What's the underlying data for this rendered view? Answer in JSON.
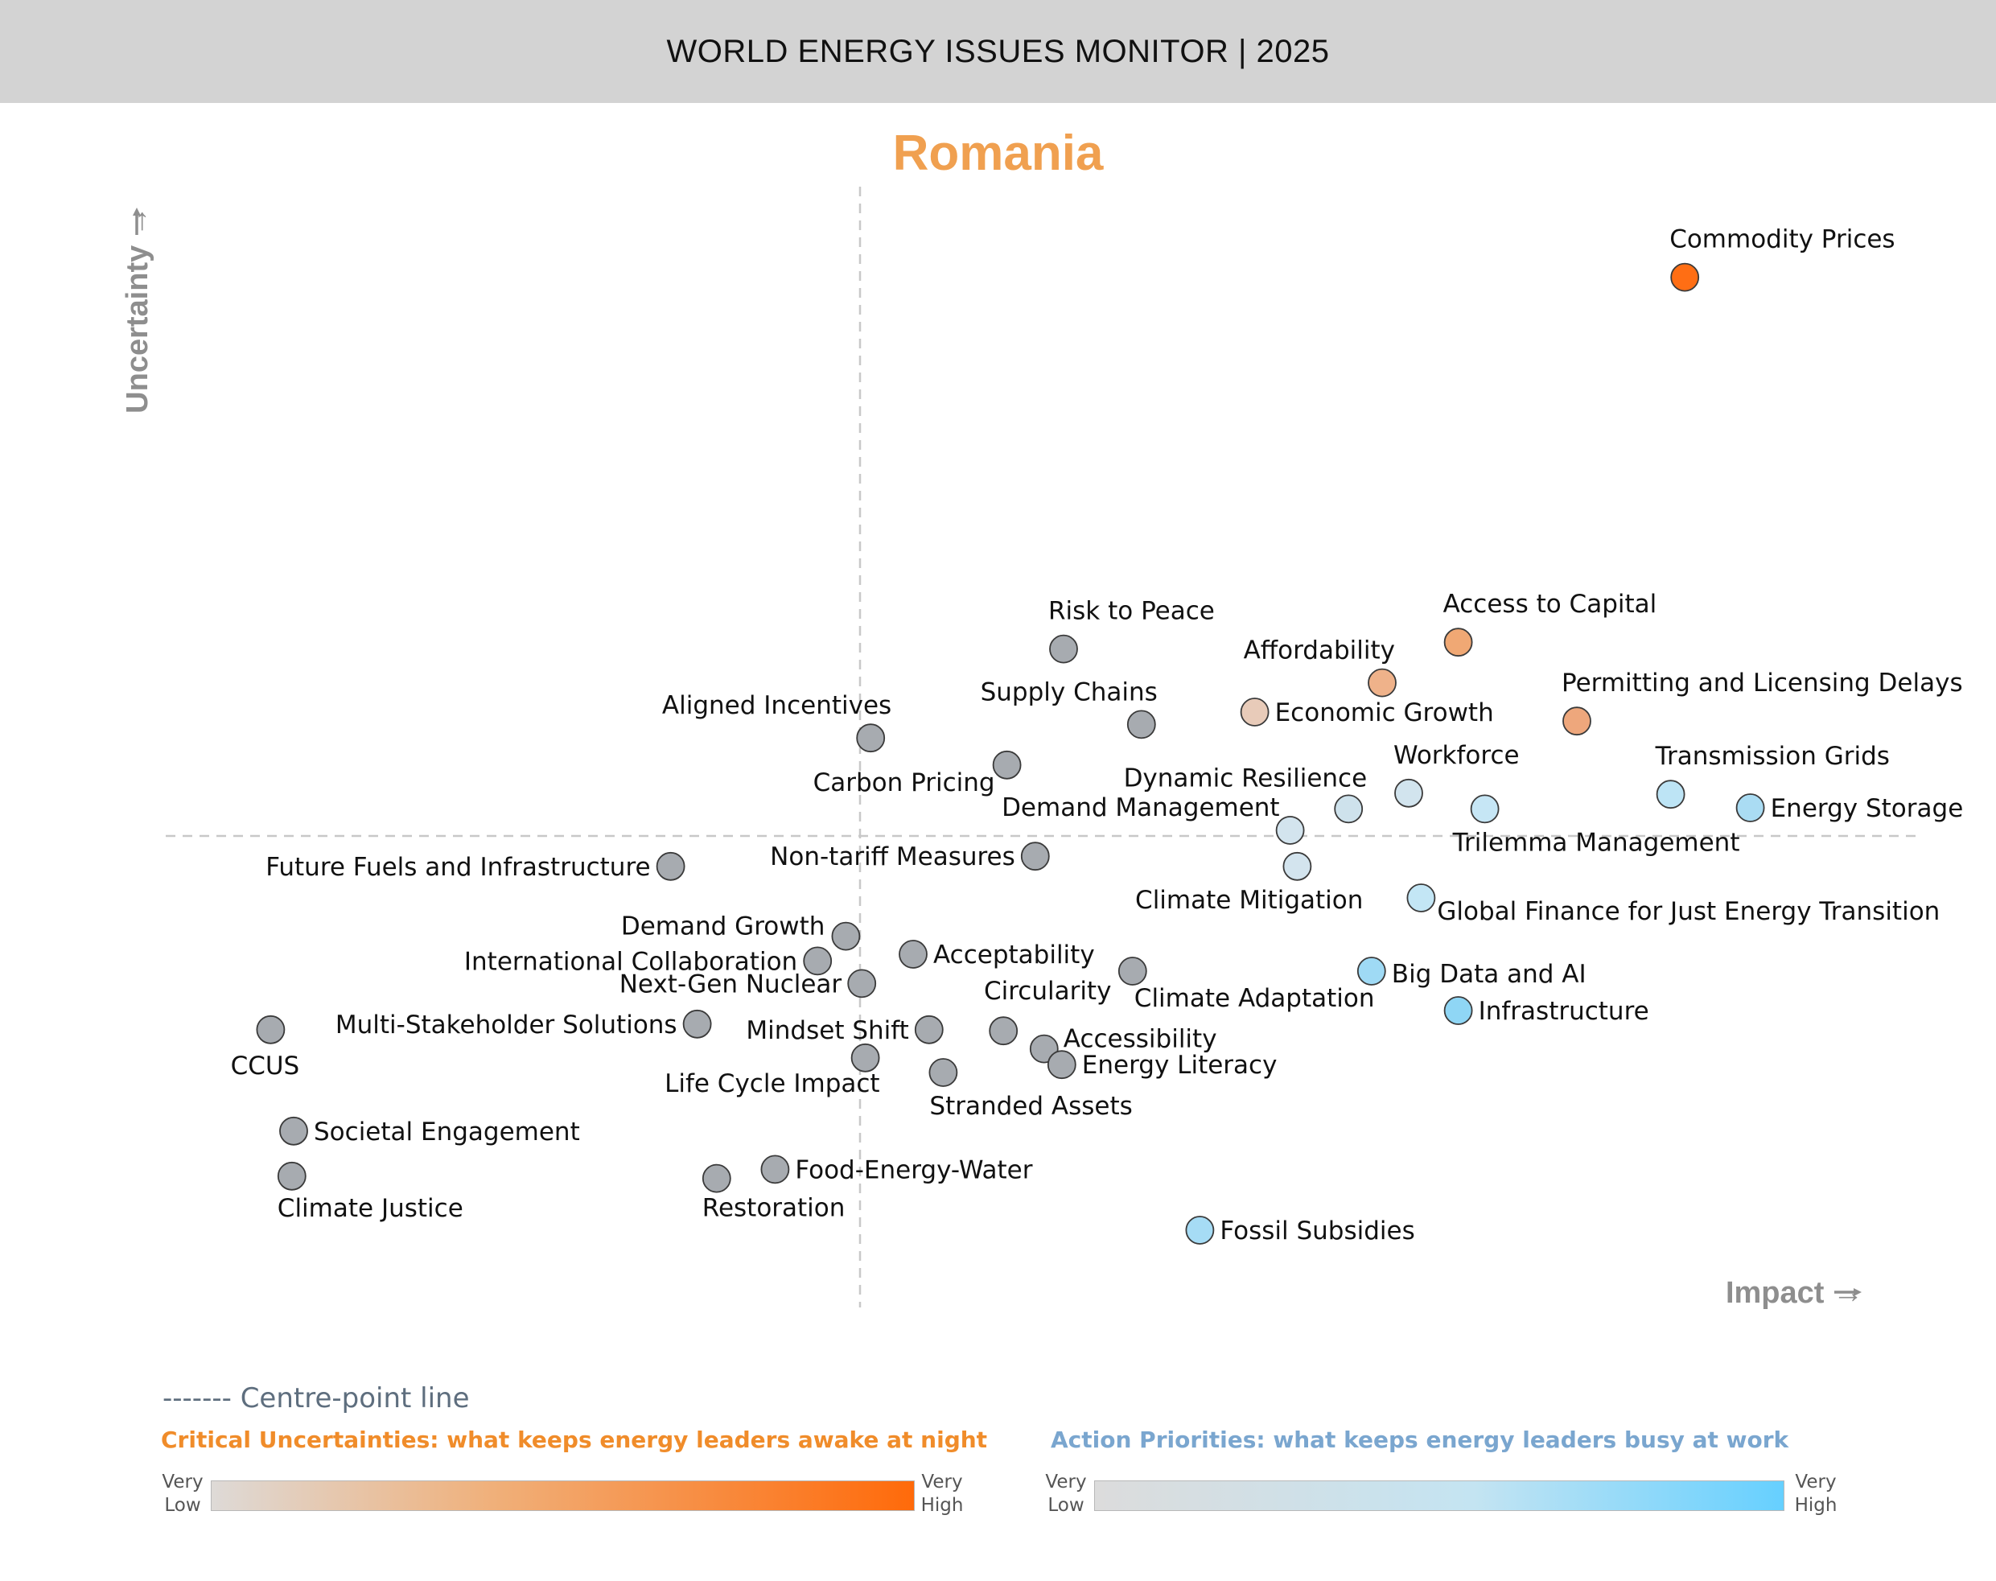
{
  "header": {
    "title": "WORLD ENERGY ISSUES MONITOR | 2025"
  },
  "country": "Romania",
  "chart_data": {
    "type": "scatter",
    "title": "Romania",
    "xlabel": "Impact →",
    "ylabel": "Uncertainty →",
    "xlim": [
      0,
      100
    ],
    "ylim": [
      0,
      100
    ],
    "centre_x": 39.5,
    "centre_y": 41.5,
    "grid": false,
    "points": [
      {
        "name": "Commodity Prices",
        "x": 86.1,
        "y": 91.1,
        "color": "#ff6e14",
        "label_pos": "above-left"
      },
      {
        "name": "Access to Capital",
        "x": 73.3,
        "y": 58.7,
        "color": "#f0a874",
        "label_pos": "above-left"
      },
      {
        "name": "Affordability",
        "x": 69.0,
        "y": 55.1,
        "color": "#efb28a",
        "label_pos": "above-left"
      },
      {
        "name": "Economic Growth",
        "x": 61.8,
        "y": 52.5,
        "color": "#e8cbb9",
        "label_pos": "right"
      },
      {
        "name": "Permitting and Licensing Delays",
        "x": 80.0,
        "y": 51.7,
        "color": "#eea77c",
        "label_pos": "above-left"
      },
      {
        "name": "Risk to Peace",
        "x": 51.0,
        "y": 58.1,
        "color": "#a7abb0",
        "label_pos": "above-left"
      },
      {
        "name": "Supply Chains",
        "x": 55.4,
        "y": 51.4,
        "color": "#a7abb0",
        "label_pos": "above-left"
      },
      {
        "name": "Aligned Incentives",
        "x": 40.1,
        "y": 50.2,
        "color": "#a7abb0",
        "label_pos": "above-left"
      },
      {
        "name": "Carbon Pricing",
        "x": 47.8,
        "y": 47.8,
        "color": "#a7abb0",
        "label_pos": "below-left"
      },
      {
        "name": "Workforce",
        "x": 70.5,
        "y": 45.3,
        "color": "#d2e4ee",
        "label_pos": "above-left"
      },
      {
        "name": "Dynamic Resilience",
        "x": 67.1,
        "y": 43.9,
        "color": "#cee2ec",
        "label_pos": "above-left"
      },
      {
        "name": "Demand Management",
        "x": 63.8,
        "y": 42.0,
        "color": "#d3e4ee",
        "label_pos": "above-left"
      },
      {
        "name": "Trilemma Management",
        "x": 74.8,
        "y": 43.9,
        "color": "#c6e6f5",
        "label_pos": "below-right"
      },
      {
        "name": "Transmission Grids",
        "x": 85.3,
        "y": 45.2,
        "color": "#bde4f5",
        "label_pos": "above-left"
      },
      {
        "name": "Energy Storage",
        "x": 89.8,
        "y": 44.0,
        "color": "#aadcf3",
        "label_pos": "right"
      },
      {
        "name": "Non-tariff Measures",
        "x": 49.4,
        "y": 39.7,
        "color": "#a7abb0",
        "label_pos": "left"
      },
      {
        "name": "Future Fuels and Infrastructure",
        "x": 28.8,
        "y": 38.8,
        "color": "#a7abb0",
        "label_pos": "left"
      },
      {
        "name": "Climate Mitigation",
        "x": 64.2,
        "y": 38.8,
        "color": "#d3e4ee",
        "label_pos": "below-left"
      },
      {
        "name": "Global Finance for Just Energy Transition",
        "x": 71.2,
        "y": 36.0,
        "color": "#c3e6f5",
        "label_pos": "below-right"
      },
      {
        "name": "Demand Growth",
        "x": 38.7,
        "y": 32.6,
        "color": "#a7abb0",
        "label_pos": "above-left"
      },
      {
        "name": "International Collaboration",
        "x": 37.1,
        "y": 30.4,
        "color": "#a7abb0",
        "label_pos": "left"
      },
      {
        "name": "Acceptability",
        "x": 42.5,
        "y": 31.0,
        "color": "#a7abb0",
        "label_pos": "right"
      },
      {
        "name": "Next-Gen Nuclear",
        "x": 39.6,
        "y": 28.4,
        "color": "#a7abb0",
        "label_pos": "left"
      },
      {
        "name": "Climate Adaptation",
        "x": 54.9,
        "y": 29.5,
        "color": "#a7abb0",
        "label_pos": "below-right"
      },
      {
        "name": "Big Data and AI",
        "x": 68.4,
        "y": 29.5,
        "color": "#9fdaf5",
        "label_pos": "right"
      },
      {
        "name": "Infrastructure",
        "x": 73.3,
        "y": 26.0,
        "color": "#8fd6f5",
        "label_pos": "right"
      },
      {
        "name": "Multi-Stakeholder Solutions",
        "x": 30.3,
        "y": 24.8,
        "color": "#a7abb0",
        "label_pos": "left"
      },
      {
        "name": "CCUS",
        "x": 6.2,
        "y": 24.3,
        "color": "#a7abb0",
        "label_pos": "below"
      },
      {
        "name": "Mindset Shift",
        "x": 43.4,
        "y": 24.3,
        "color": "#a7abb0",
        "label_pos": "left"
      },
      {
        "name": "Circularity",
        "x": 47.6,
        "y": 24.2,
        "color": "#a7abb0",
        "label_pos": "above"
      },
      {
        "name": "Accessibility",
        "x": 49.9,
        "y": 22.6,
        "color": "#a7abb0",
        "label_pos": "above-right"
      },
      {
        "name": "Life Cycle Impact",
        "x": 39.8,
        "y": 21.8,
        "color": "#a7abb0",
        "label_pos": "below-left"
      },
      {
        "name": "Energy Literacy",
        "x": 50.9,
        "y": 21.2,
        "color": "#a7abb0",
        "label_pos": "right"
      },
      {
        "name": "Stranded Assets",
        "x": 44.2,
        "y": 20.5,
        "color": "#a7abb0",
        "label_pos": "below-right"
      },
      {
        "name": "Societal Engagement",
        "x": 7.5,
        "y": 15.3,
        "color": "#a7abb0",
        "label_pos": "right"
      },
      {
        "name": "Food-Energy-Water",
        "x": 34.7,
        "y": 11.9,
        "color": "#a7abb0",
        "label_pos": "right"
      },
      {
        "name": "Climate Justice",
        "x": 7.4,
        "y": 11.3,
        "color": "#a7abb0",
        "label_pos": "below-right"
      },
      {
        "name": "Restoration",
        "x": 31.4,
        "y": 11.1,
        "color": "#a7abb0",
        "label_pos": "below-right"
      },
      {
        "name": "Fossil Subsidies",
        "x": 58.7,
        "y": 6.5,
        "color": "#a6dcf5",
        "label_pos": "right"
      }
    ]
  },
  "legend": {
    "centre_line": "------- Centre-point line",
    "critical_uncertainties": {
      "title": "Critical Uncertainties: what keeps energy leaders awake at night",
      "low_1": "Very",
      "low_2": "Low",
      "high_1": "Very",
      "high_2": "High",
      "color_low": "#dedad7",
      "color_high": "#ff6a0a"
    },
    "action_priorities": {
      "title": "Action Priorities: what keeps energy leaders busy at work",
      "low_1": "Very",
      "low_2": "Low",
      "high_1": "Very",
      "high_2": "High",
      "color_low": "#dcdcdc",
      "color_high": "#66d0ff"
    }
  }
}
